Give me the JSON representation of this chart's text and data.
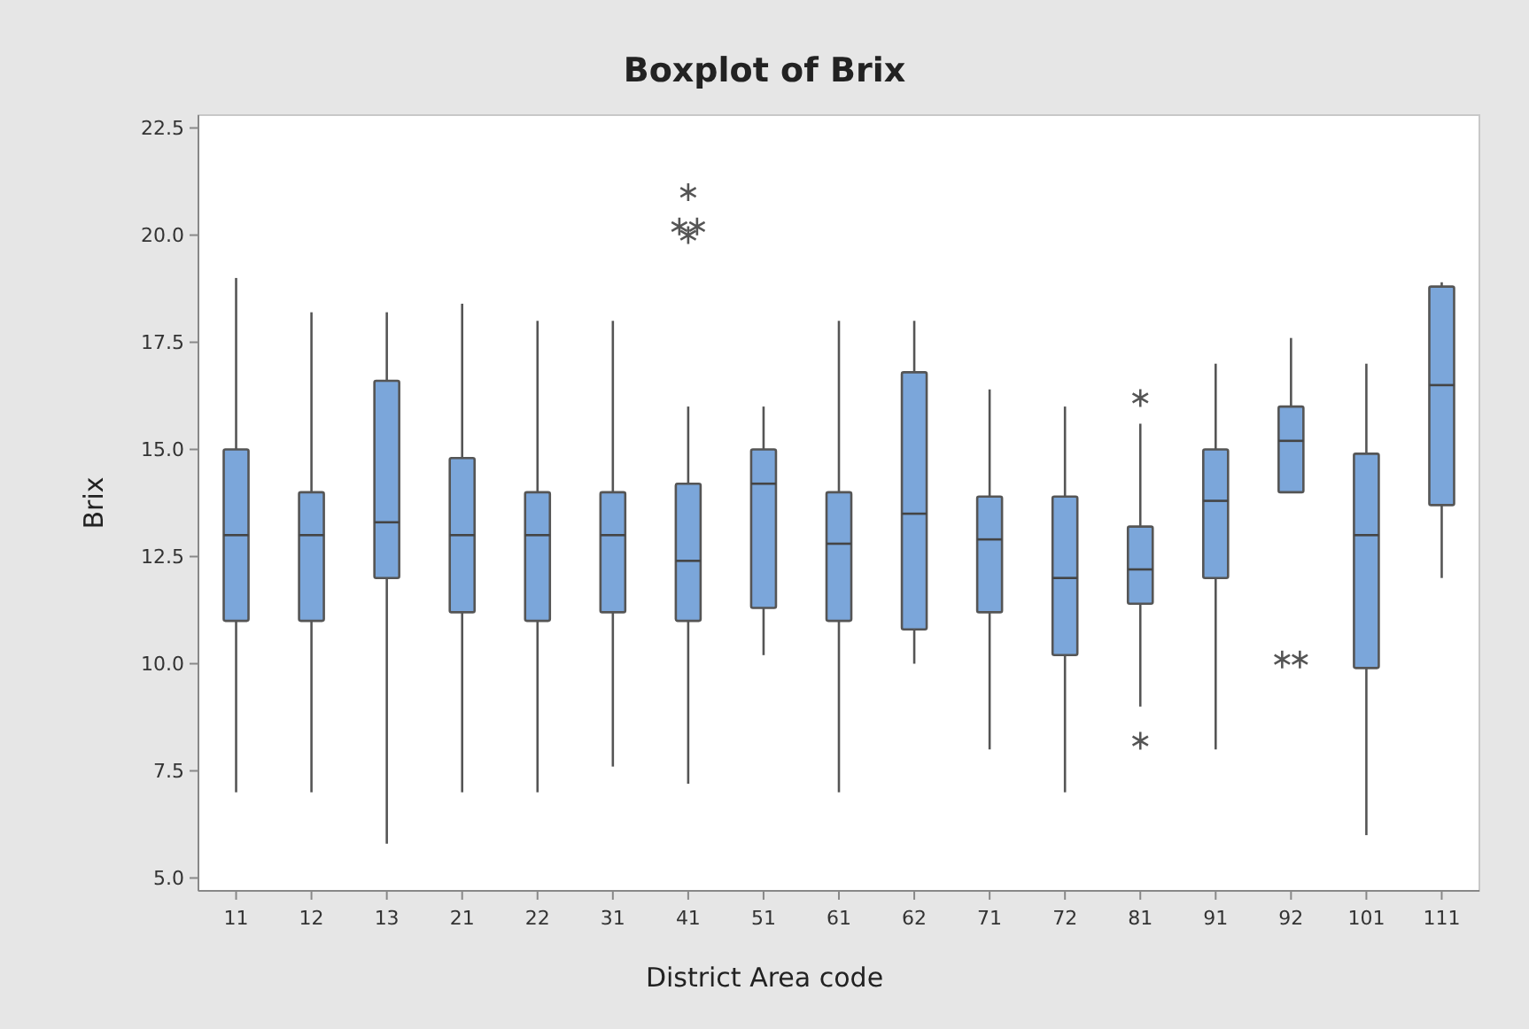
{
  "chart_data": {
    "type": "box",
    "title": "Boxplot of Brix",
    "xlabel": "District Area code",
    "ylabel": "Brix",
    "categories": [
      "11",
      "12",
      "13",
      "21",
      "22",
      "31",
      "41",
      "51",
      "61",
      "62",
      "71",
      "72",
      "81",
      "91",
      "92",
      "101",
      "111"
    ],
    "color": "#7ba6da",
    "marker": "star",
    "ylim": [
      4.7,
      22.8
    ],
    "yticks": [
      {
        "value": 5,
        "label": "5.0"
      },
      {
        "value": 7.5,
        "label": "7.5"
      },
      {
        "value": 10,
        "label": "10.0"
      },
      {
        "value": 12.5,
        "label": "12.5"
      },
      {
        "value": 15,
        "label": "15.0"
      },
      {
        "value": 17.5,
        "label": "17.5"
      },
      {
        "value": 20,
        "label": "20.0"
      },
      {
        "value": 22.5,
        "label": "22.5"
      }
    ],
    "grid": false,
    "boxes": [
      {
        "low": 7.0,
        "q1": 11.0,
        "median": 13.0,
        "q3": 15.0,
        "high": 19.0
      },
      {
        "low": 7.0,
        "q1": 11.0,
        "median": 13.0,
        "q3": 14.0,
        "high": 18.2
      },
      {
        "low": 5.8,
        "q1": 12.0,
        "median": 13.3,
        "q3": 16.6,
        "high": 18.2
      },
      {
        "low": 7.0,
        "q1": 11.2,
        "median": 13.0,
        "q3": 14.8,
        "high": 18.4
      },
      {
        "low": 7.0,
        "q1": 11.0,
        "median": 13.0,
        "q3": 14.0,
        "high": 18.0
      },
      {
        "low": 7.6,
        "q1": 11.2,
        "median": 13.0,
        "q3": 14.0,
        "high": 18.0
      },
      {
        "low": 7.2,
        "q1": 11.0,
        "median": 12.4,
        "q3": 14.2,
        "high": 16.0,
        "outliers": [
          21.0,
          20.2,
          20.2,
          20.0
        ]
      },
      {
        "low": 10.2,
        "q1": 11.3,
        "median": 14.2,
        "q3": 15.0,
        "high": 16.0
      },
      {
        "low": 7.0,
        "q1": 11.0,
        "median": 12.8,
        "q3": 14.0,
        "high": 18.0
      },
      {
        "low": 10.0,
        "q1": 10.8,
        "median": 13.5,
        "q3": 16.8,
        "high": 18.0
      },
      {
        "low": 8.0,
        "q1": 11.2,
        "median": 12.9,
        "q3": 13.9,
        "high": 16.4
      },
      {
        "low": 7.0,
        "q1": 10.2,
        "median": 12.0,
        "q3": 13.9,
        "high": 16.0
      },
      {
        "low": 9.0,
        "q1": 11.4,
        "median": 12.2,
        "q3": 13.2,
        "high": 15.6,
        "outliers": [
          16.2,
          8.2
        ]
      },
      {
        "low": 8.0,
        "q1": 12.0,
        "median": 13.8,
        "q3": 15.0,
        "high": 17.0
      },
      {
        "low": 14.0,
        "q1": 14.0,
        "median": 15.2,
        "q3": 16.0,
        "high": 17.6,
        "outliers": [
          10.1,
          10.1
        ]
      },
      {
        "low": 6.0,
        "q1": 9.9,
        "median": 13.0,
        "q3": 14.9,
        "high": 17.0
      },
      {
        "low": 12.0,
        "q1": 13.7,
        "median": 16.5,
        "q3": 18.8,
        "high": 18.9
      }
    ]
  }
}
